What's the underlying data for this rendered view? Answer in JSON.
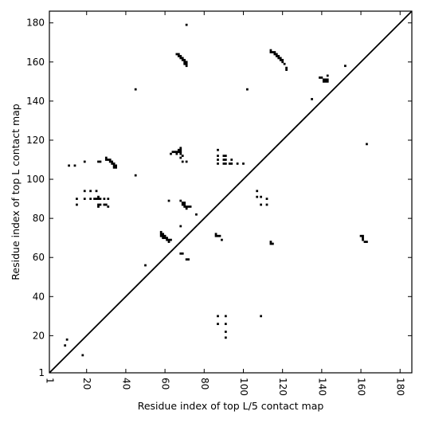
{
  "chart_data": {
    "type": "scatter",
    "title": "",
    "xlabel": "Residue index of top L/5 contact map",
    "ylabel": "Residue index of top L contact map",
    "xlim": [
      1,
      186
    ],
    "ylim": [
      1,
      186
    ],
    "xticks": [
      1,
      20,
      40,
      60,
      80,
      100,
      120,
      140,
      160,
      180
    ],
    "yticks": [
      1,
      20,
      40,
      60,
      80,
      100,
      120,
      140,
      160,
      180
    ],
    "x_tick_labels": [
      "1",
      "20",
      "40",
      "60",
      "80",
      "100",
      "120",
      "140",
      "160",
      "180"
    ],
    "y_tick_labels": [
      "1",
      "20",
      "40",
      "60",
      "80",
      "100",
      "120",
      "140",
      "160",
      "180"
    ],
    "x_tick_rotation": "vertical",
    "grid": false,
    "diagonal": {
      "from": [
        1,
        1
      ],
      "to": [
        186,
        186
      ],
      "color": "#000000"
    },
    "marker": {
      "shape": "square",
      "color": "#000000"
    },
    "series": [
      {
        "values": [
          [
            71,
            179
          ],
          [
            66,
            164
          ],
          [
            67,
            164
          ],
          [
            67,
            163
          ],
          [
            68,
            163
          ],
          [
            68,
            162
          ],
          [
            69,
            162
          ],
          [
            69,
            161
          ],
          [
            70,
            161
          ],
          [
            70,
            160
          ],
          [
            71,
            160
          ],
          [
            71,
            159
          ],
          [
            71,
            158
          ],
          [
            70,
            159
          ],
          [
            114,
            166
          ],
          [
            114,
            165
          ],
          [
            115,
            165
          ],
          [
            116,
            165
          ],
          [
            116,
            164
          ],
          [
            117,
            164
          ],
          [
            117,
            163
          ],
          [
            118,
            163
          ],
          [
            118,
            162
          ],
          [
            119,
            162
          ],
          [
            119,
            161
          ],
          [
            120,
            161
          ],
          [
            120,
            160
          ],
          [
            121,
            159
          ],
          [
            122,
            157
          ],
          [
            122,
            156
          ],
          [
            45,
            146
          ],
          [
            102,
            146
          ],
          [
            135,
            141
          ],
          [
            152,
            158
          ],
          [
            139,
            152
          ],
          [
            140,
            152
          ],
          [
            141,
            151
          ],
          [
            142,
            151
          ],
          [
            143,
            151
          ],
          [
            143,
            150
          ],
          [
            142,
            150
          ],
          [
            141,
            150
          ],
          [
            143,
            153
          ],
          [
            163,
            118
          ],
          [
            87,
            115
          ],
          [
            87,
            112
          ],
          [
            87,
            110
          ],
          [
            87,
            108
          ],
          [
            90,
            112
          ],
          [
            91,
            112
          ],
          [
            90,
            110
          ],
          [
            91,
            110
          ],
          [
            90,
            108
          ],
          [
            91,
            108
          ],
          [
            93,
            108
          ],
          [
            94,
            110
          ],
          [
            94,
            108
          ],
          [
            97,
            108
          ],
          [
            100,
            108
          ],
          [
            11,
            107
          ],
          [
            14,
            107
          ],
          [
            19,
            109
          ],
          [
            26,
            109
          ],
          [
            27,
            109
          ],
          [
            30,
            111
          ],
          [
            30,
            110
          ],
          [
            31,
            110
          ],
          [
            32,
            110
          ],
          [
            32,
            109
          ],
          [
            33,
            109
          ],
          [
            33,
            108
          ],
          [
            34,
            108
          ],
          [
            34,
            107
          ],
          [
            35,
            107
          ],
          [
            35,
            106
          ],
          [
            34,
            106
          ],
          [
            45,
            102
          ],
          [
            63,
            113
          ],
          [
            64,
            114
          ],
          [
            65,
            114
          ],
          [
            66,
            114
          ],
          [
            66,
            113
          ],
          [
            67,
            114
          ],
          [
            67,
            115
          ],
          [
            68,
            115
          ],
          [
            68,
            116
          ],
          [
            68,
            114
          ],
          [
            68,
            113
          ],
          [
            69,
            112
          ],
          [
            68,
            111
          ],
          [
            69,
            109
          ],
          [
            71,
            109
          ],
          [
            19,
            94
          ],
          [
            22,
            94
          ],
          [
            25,
            94
          ],
          [
            15,
            90
          ],
          [
            19,
            90
          ],
          [
            22,
            90
          ],
          [
            24,
            90
          ],
          [
            25,
            90
          ],
          [
            26,
            91
          ],
          [
            26,
            90
          ],
          [
            27,
            90
          ],
          [
            29,
            90
          ],
          [
            31,
            90
          ],
          [
            15,
            87
          ],
          [
            26,
            87
          ],
          [
            26,
            86
          ],
          [
            27,
            87
          ],
          [
            29,
            87
          ],
          [
            30,
            87
          ],
          [
            31,
            86
          ],
          [
            62,
            89
          ],
          [
            68,
            89
          ],
          [
            69,
            88
          ],
          [
            69,
            87
          ],
          [
            70,
            88
          ],
          [
            70,
            87
          ],
          [
            70,
            86
          ],
          [
            71,
            86
          ],
          [
            71,
            85
          ],
          [
            72,
            86
          ],
          [
            73,
            86
          ],
          [
            76,
            82
          ],
          [
            107,
            94
          ],
          [
            107,
            91
          ],
          [
            109,
            91
          ],
          [
            109,
            87
          ],
          [
            112,
            90
          ],
          [
            112,
            87
          ],
          [
            58,
            73
          ],
          [
            58,
            72
          ],
          [
            58,
            71
          ],
          [
            59,
            72
          ],
          [
            59,
            71
          ],
          [
            59,
            70
          ],
          [
            60,
            71
          ],
          [
            60,
            70
          ],
          [
            61,
            70
          ],
          [
            61,
            69
          ],
          [
            62,
            69
          ],
          [
            62,
            68
          ],
          [
            63,
            69
          ],
          [
            68,
            76
          ],
          [
            86,
            72
          ],
          [
            86,
            71
          ],
          [
            87,
            71
          ],
          [
            88,
            71
          ],
          [
            89,
            69
          ],
          [
            114,
            68
          ],
          [
            114,
            67
          ],
          [
            115,
            67
          ],
          [
            160,
            71
          ],
          [
            161,
            71
          ],
          [
            161,
            70
          ],
          [
            161,
            69
          ],
          [
            162,
            68
          ],
          [
            163,
            68
          ],
          [
            68,
            62
          ],
          [
            69,
            62
          ],
          [
            71,
            59
          ],
          [
            72,
            59
          ],
          [
            50,
            56
          ],
          [
            87,
            30
          ],
          [
            91,
            30
          ],
          [
            109,
            30
          ],
          [
            87,
            26
          ],
          [
            91,
            26
          ],
          [
            91,
            22
          ],
          [
            91,
            19
          ],
          [
            10,
            18
          ],
          [
            9,
            15
          ],
          [
            18,
            10
          ]
        ]
      }
    ]
  }
}
